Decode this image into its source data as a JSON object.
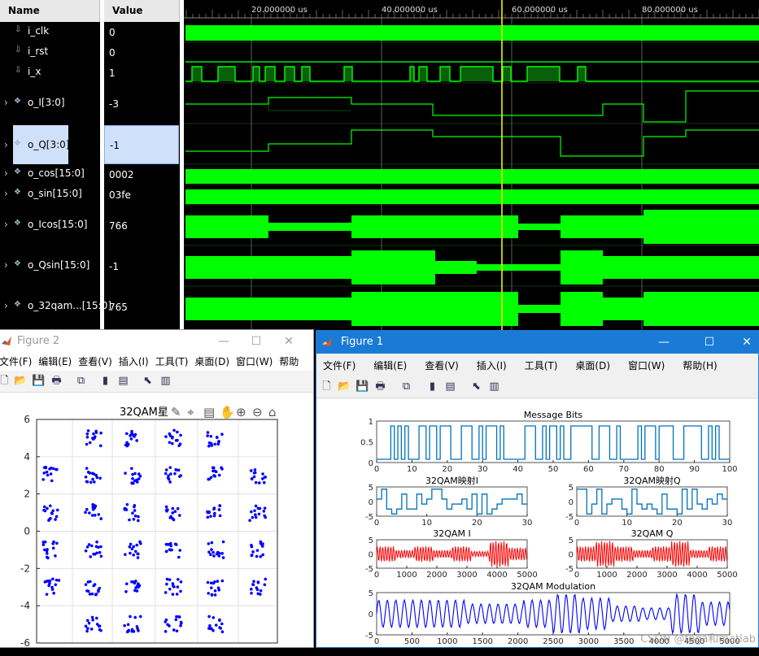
{
  "waveform": {
    "headers": {
      "name": "Name",
      "value": "Value"
    },
    "time_ticks": [
      "20.000000 us",
      "40.000000 us",
      "60.000000 us",
      "80.000000 us"
    ],
    "signals": [
      {
        "name": "i_clk",
        "value": "0",
        "icon": "bit-signal-icon"
      },
      {
        "name": "i_rst",
        "value": "0",
        "icon": "bit-signal-icon"
      },
      {
        "name": "i_x",
        "value": "1",
        "icon": "bit-signal-icon"
      },
      {
        "name": "o_I[3:0]",
        "value": "-3",
        "icon": "bus-signal-icon"
      },
      {
        "name": "o_Q[3:0]",
        "value": "-1",
        "icon": "bus-signal-icon"
      },
      {
        "name": "o_cos[15:0]",
        "value": "0002",
        "icon": "bus-signal-icon"
      },
      {
        "name": "o_sin[15:0]",
        "value": "03fe",
        "icon": "bus-signal-icon"
      },
      {
        "name": "o_Icos[15:0]",
        "value": "766",
        "icon": "bus-signal-icon"
      },
      {
        "name": "o_Qsin[15:0]",
        "value": "-1",
        "icon": "bus-signal-icon"
      },
      {
        "name": "o_32qam...[15:0]",
        "value": "765",
        "icon": "bus-signal-icon"
      }
    ],
    "wave_color": "#00ff00",
    "cursor_color": "#ffff00"
  },
  "figure2": {
    "title": "Figure 2",
    "menus": [
      "文件(F)",
      "编辑(E)",
      "查看(V)",
      "插入(I)",
      "工具(T)",
      "桌面(D)",
      "窗口(W)",
      "帮助(H)"
    ],
    "plot_title": "32QAM星",
    "y_ticks": [
      "6",
      "4",
      "2",
      "0",
      "-2",
      "-4",
      "-6"
    ]
  },
  "figure1": {
    "title": "Figure 1",
    "menus": [
      "文件(F)",
      "编辑(E)",
      "查看(V)",
      "插入(I)",
      "工具(T)",
      "桌面(D)",
      "窗口(W)",
      "帮助(H)"
    ],
    "plots": {
      "message": {
        "title": "Message Bits",
        "x_ticks": [
          "0",
          "10",
          "20",
          "30",
          "40",
          "50",
          "60",
          "70",
          "80",
          "90",
          "100"
        ],
        "y_ticks": [
          "1",
          "0.5",
          "0"
        ]
      },
      "map_i": {
        "title": "32QAM映射I",
        "x_ticks": [
          "0",
          "10",
          "20",
          "30"
        ],
        "y_ticks": [
          "5",
          "0",
          "-5"
        ]
      },
      "map_q": {
        "title": "32QAM映射Q",
        "x_ticks": [
          "0",
          "10",
          "20",
          "30"
        ],
        "y_ticks": [
          "5",
          "0",
          "-5"
        ]
      },
      "qam_i": {
        "title": "32QAM I",
        "x_ticks": [
          "0",
          "1000",
          "2000",
          "3000",
          "4000",
          "5000"
        ],
        "y_ticks": [
          "5",
          "0",
          "-5"
        ]
      },
      "qam_q": {
        "title": "32QAM Q",
        "x_ticks": [
          "0",
          "1000",
          "2000",
          "3000",
          "4000",
          "5000"
        ],
        "y_ticks": [
          "5",
          "0",
          "-5"
        ]
      },
      "modulation": {
        "title": "32QAM Modulation",
        "x_ticks": [
          "0",
          "500",
          "1000",
          "1500",
          "2000",
          "2500",
          "3000",
          "3500",
          "4000",
          "4500",
          "5000"
        ],
        "y_ticks": [
          "5",
          "0",
          "-5"
        ]
      }
    }
  },
  "watermark": "CSDN @fpga和matlab"
}
